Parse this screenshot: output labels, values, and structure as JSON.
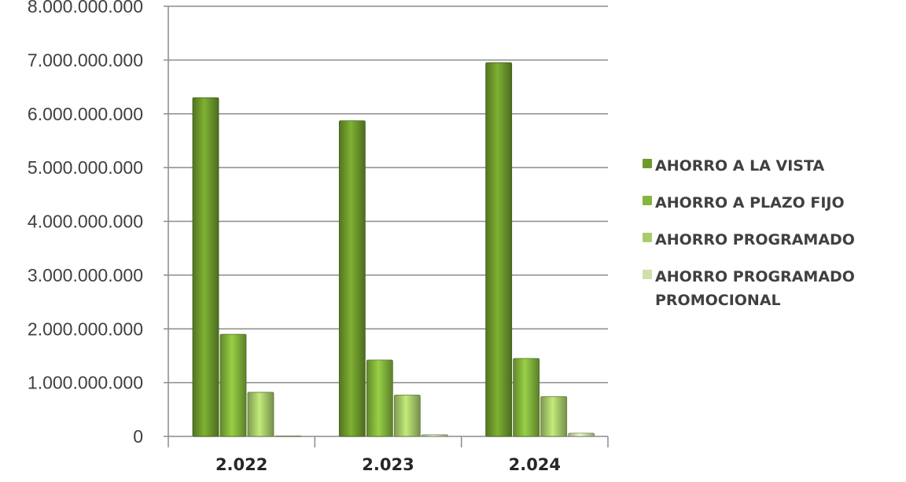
{
  "chart_data": {
    "type": "bar",
    "title": "",
    "xlabel": "",
    "ylabel": "",
    "categories": [
      "2.022",
      "2.023",
      "2.024"
    ],
    "series": [
      {
        "name": "AHORRO A LA VISTA",
        "values": [
          6300000000,
          5870000000,
          6950000000
        ],
        "color": "#6e9a2c"
      },
      {
        "name": "AHORRO A PLAZO FIJO",
        "values": [
          1900000000,
          1420000000,
          1450000000
        ],
        "color": "#84b53c"
      },
      {
        "name": "AHORRO PROGRAMADO",
        "values": [
          820000000,
          770000000,
          740000000
        ],
        "color": "#a9cc6a"
      },
      {
        "name": "AHORRO PROGRAMADO PROMOCIONAL",
        "values": [
          10000000,
          30000000,
          60000000
        ],
        "color": "#cfe0a8"
      }
    ],
    "ylim": [
      0,
      8000000000
    ],
    "y_ticks": [
      "0",
      "1.000.000.000",
      "2.000.000.000",
      "3.000.000.000",
      "4.000.000.000",
      "5.000.000.000",
      "6.000.000.000",
      "7.000.000.000",
      "8.000.000.000"
    ],
    "y_tick_values": [
      0,
      1000000000,
      2000000000,
      3000000000,
      4000000000,
      5000000000,
      6000000000,
      7000000000,
      8000000000
    ],
    "grid": true,
    "legend": "right"
  }
}
